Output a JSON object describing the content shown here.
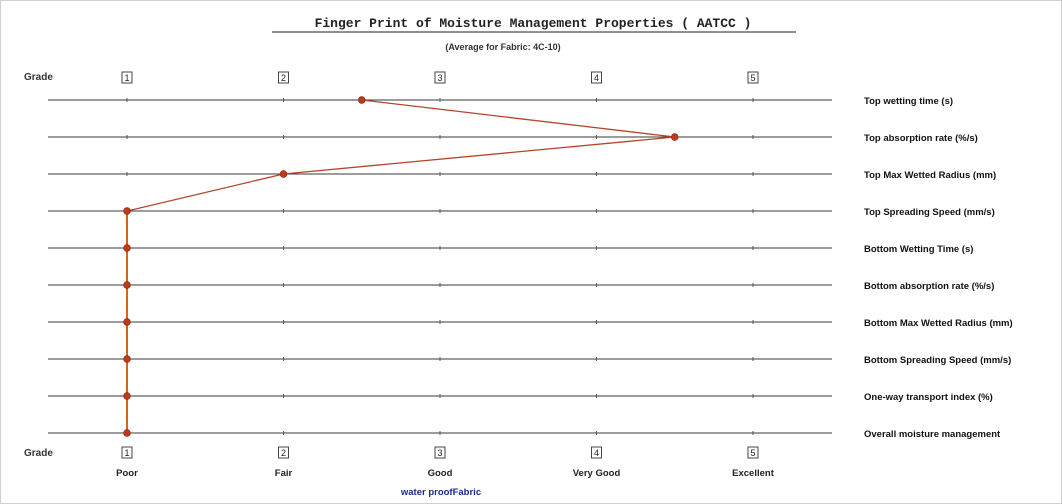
{
  "chart_data": {
    "type": "line",
    "title": "Finger Print of Moisture Management Properties  ( AATCC )",
    "subtitle": "(Average for Fabric: 4C-10)",
    "axis_label": "Grade",
    "grades": [
      "1",
      "2",
      "3",
      "4",
      "5"
    ],
    "grade_categories": [
      "Poor",
      "Fair",
      "Good",
      "Very Good",
      "Excellent"
    ],
    "xlim": [
      1,
      5
    ],
    "rows": [
      "Top wetting time (s)",
      "Top absorption rate (%/s)",
      "Top Max Wetted Radius (mm)",
      "Top Spreading Speed (mm/s)",
      "Bottom Wetting Time (s)",
      "Bottom absorption rate (%/s)",
      "Bottom Max Wetted Radius (mm)",
      "Bottom Spreading Speed (mm/s)",
      "One-way transport index (%)",
      "Overall moisture management"
    ],
    "series": [
      {
        "values": [
          2.5,
          4.5,
          2.0,
          1.0,
          1.0,
          1.0,
          1.0,
          1.0,
          1.0,
          1.0
        ]
      }
    ],
    "colors": {
      "line": "#b5452a",
      "vertical_line": "#d2661f",
      "point": "#c0391b",
      "note": "#1a2a8a"
    },
    "note": "water proofFabric"
  }
}
